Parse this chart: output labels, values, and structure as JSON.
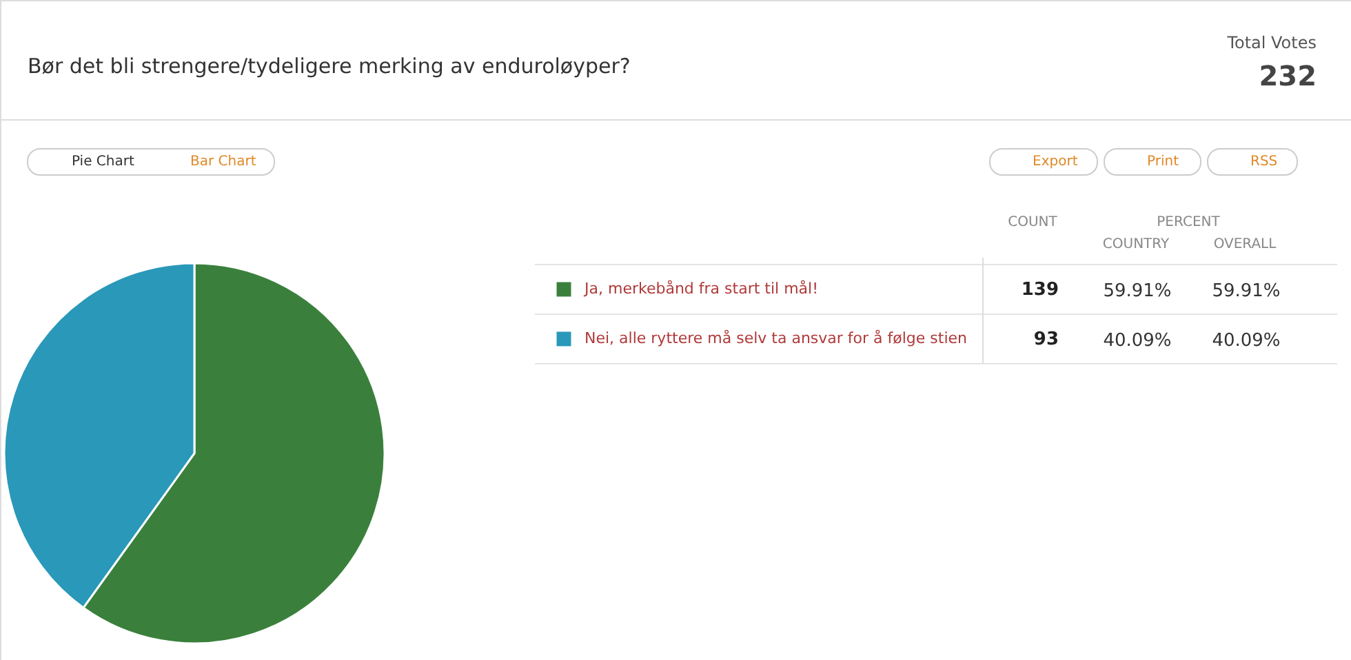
{
  "chart_data": {
    "type": "pie",
    "title": "Bør det bli strengere/tydeligere merking av enduroløyper?",
    "categories": [
      "Ja, merkebånd fra start til mål!",
      "Nei, alle ryttere må selv ta ansvar for å følge stien"
    ],
    "values": [
      139,
      93
    ],
    "colors": [
      "#3a803c",
      "#2a98b9"
    ],
    "data_labels": true,
    "legend": "right",
    "annotations": [
      "Total Votes",
      "232",
      "Pie Chart",
      "Bar Chart",
      "Export",
      "Print",
      "RSS",
      "COUNT",
      "PERCENT",
      "COUNTRY",
      "OVERALL",
      "59.91%",
      "59.91%",
      "40.09%",
      "40.09%"
    ]
  }
}
